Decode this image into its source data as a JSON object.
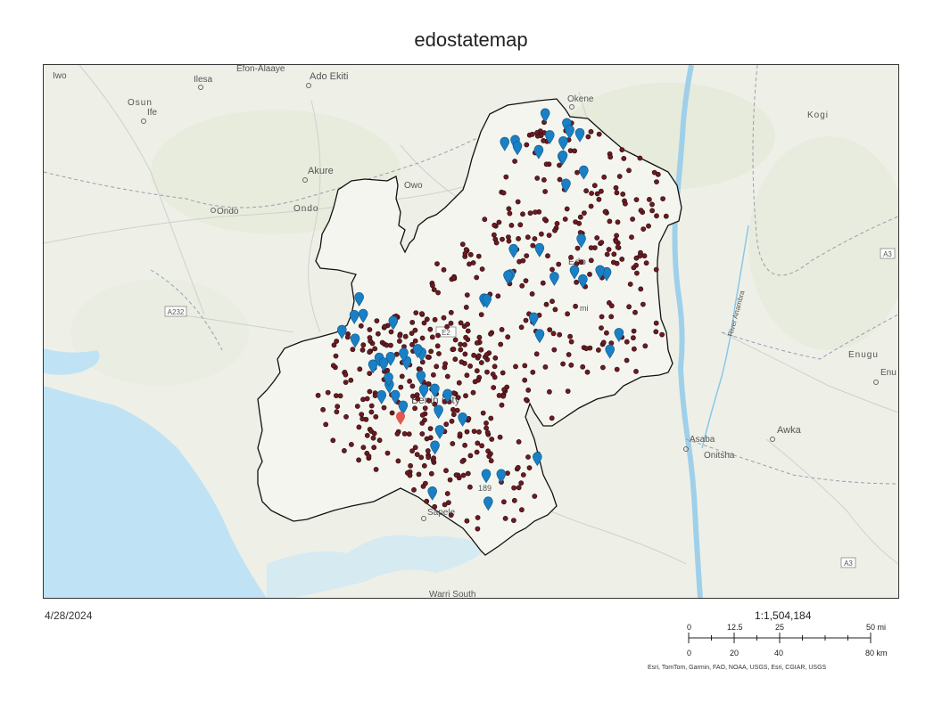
{
  "title": "edostatemap",
  "date": "4/28/2024",
  "scale_ratio": "1:1,504,184",
  "scale_bar": {
    "mi_ticks": [
      "0",
      "12.5",
      "25",
      "50 mi"
    ],
    "km_ticks": [
      "0",
      "20",
      "40",
      "80 km"
    ]
  },
  "attribution": "Esri, TomTom, Garmin, FAO, NOAA, USGS, Esri, CGIAR, USGS",
  "places": {
    "iwo": "Iwo",
    "ilesa": "Ilesa",
    "efon": "Efon-Alaaye",
    "ado": "Ado Ekiti",
    "osun": "Osun",
    "ife": "Ife",
    "okene": "Okene",
    "kogi": "Kogi",
    "akure": "Akure",
    "owo": "Owo",
    "ondo_city": "Ondo",
    "ondo_state": "Ondo",
    "edo": "Edo",
    "benin": "Benin City",
    "sapele": "Sapele",
    "warri": "Warri South",
    "asaba": "Asaba",
    "onitsha": "Onitsha",
    "awka": "Awka",
    "enugu_state": "Enugu",
    "enugu_city": "Enu",
    "river": "River Anambra",
    "a232": "A232",
    "a3a": "A3",
    "a3b": "A3",
    "e2": "E2",
    "mi": "mi",
    "n189": "189"
  },
  "colors": {
    "water": "#bfe3f5",
    "land": "#eef0e8",
    "boundary": "#111111",
    "point_dot": "#6b1b22",
    "marker": "#1a7fc4",
    "highlight": "#e05a4f"
  },
  "icons": {
    "dot": "circle-point",
    "marker": "map-pin-icon"
  }
}
